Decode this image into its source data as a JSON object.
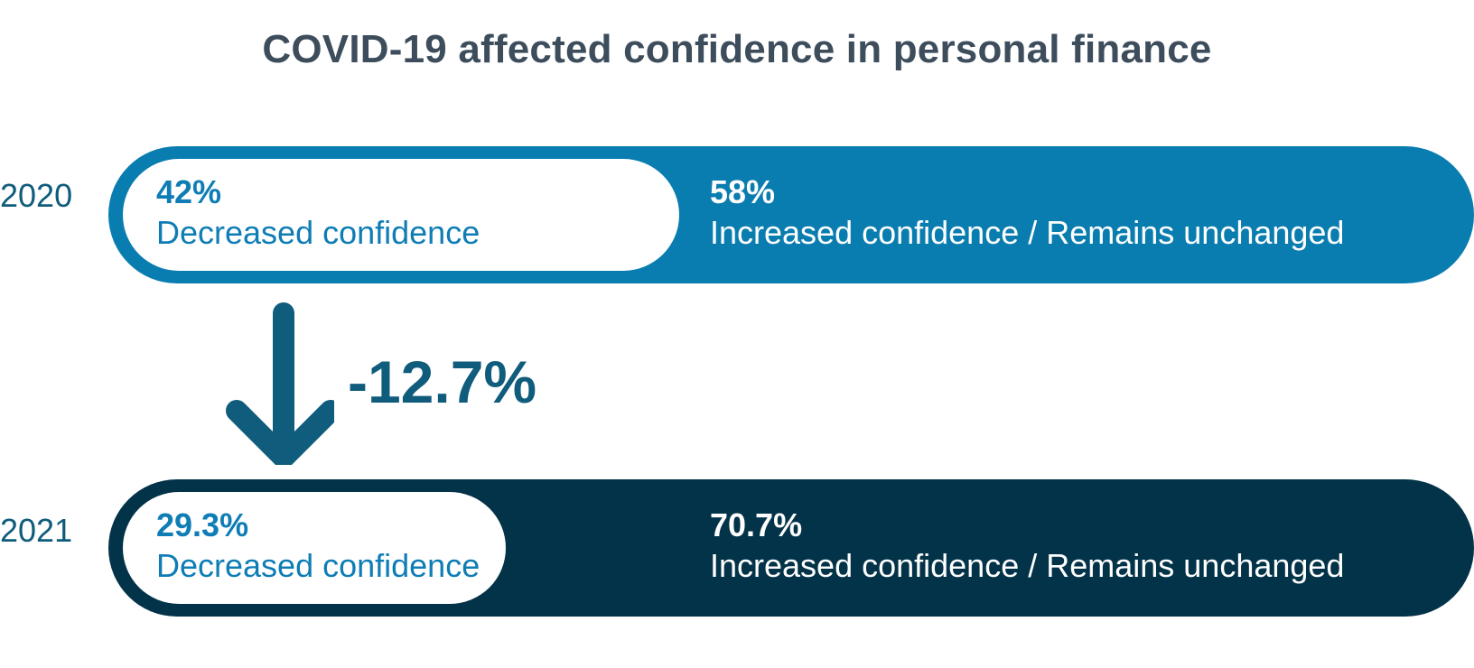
{
  "title": "COVID-19 affected confidence in personal finance",
  "change_label": "-12.7%",
  "colors": {
    "bar_2020": "#0a7db0",
    "bar_2021": "#033349",
    "arrow": "#0f5c7c",
    "decreased_text": "#0f7db5",
    "title": "#3d4d5c"
  },
  "chart_data": {
    "type": "bar",
    "orientation": "horizontal",
    "stacked": true,
    "title": "COVID-19 affected confidence in personal finance",
    "categories": [
      "2020",
      "2021"
    ],
    "series": [
      {
        "name": "Decreased confidence",
        "values": [
          42,
          29.3
        ],
        "labels": [
          "42%",
          "29.3%"
        ]
      },
      {
        "name": "Increased confidence / Remains unchanged",
        "values": [
          58,
          70.7
        ],
        "labels": [
          "58%",
          "70.7%"
        ]
      }
    ],
    "change": {
      "from": "2020",
      "to": "2021",
      "series": "Decreased confidence",
      "value": -12.7,
      "label": "-12.7%"
    },
    "xlim": [
      0,
      100
    ]
  }
}
